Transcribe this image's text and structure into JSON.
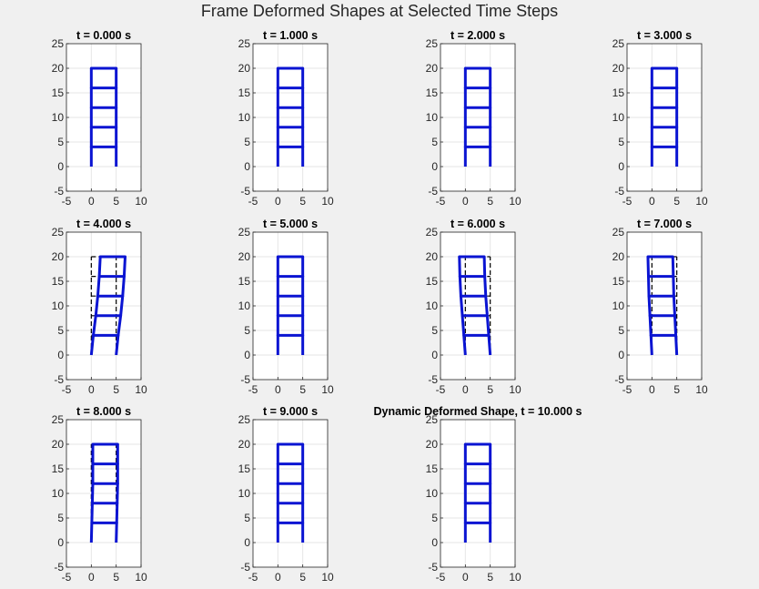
{
  "figure": {
    "title": "Frame Deformed Shapes at Selected Time Steps"
  },
  "chart_data": {
    "type": "line",
    "xlim": [
      -5,
      10
    ],
    "ylim": [
      -5,
      25
    ],
    "xticks": [
      -5,
      0,
      5,
      10
    ],
    "yticks": [
      -5,
      0,
      5,
      10,
      15,
      20,
      25
    ],
    "grid": true,
    "column_x": [
      0,
      5
    ],
    "floor_y": [
      0,
      4,
      8,
      12,
      16,
      20
    ],
    "styles": {
      "deformed": {
        "color": "#0a14d2",
        "dash": "solid"
      },
      "undeformed": {
        "color": "#000000",
        "dash": "dashed"
      }
    },
    "subplots": [
      {
        "title": "t = 0.000 s",
        "floor_disp": [
          0,
          0,
          0,
          0,
          0,
          0
        ]
      },
      {
        "title": "t = 1.000 s",
        "floor_disp": [
          0,
          0,
          0,
          0,
          0,
          0
        ]
      },
      {
        "title": "t = 2.000 s",
        "floor_disp": [
          0,
          0,
          0,
          0,
          0,
          0
        ]
      },
      {
        "title": "t = 3.000 s",
        "floor_disp": [
          0,
          0,
          0,
          0,
          0,
          0
        ]
      },
      {
        "title": "t = 4.000 s",
        "floor_disp": [
          0,
          0.4,
          0.9,
          1.3,
          1.6,
          1.8
        ]
      },
      {
        "title": "t = 5.000 s",
        "floor_disp": [
          0,
          0,
          0,
          0,
          0,
          0
        ]
      },
      {
        "title": "t = 6.000 s",
        "floor_disp": [
          0,
          -0.3,
          -0.6,
          -0.9,
          -1.1,
          -1.2
        ]
      },
      {
        "title": "t = 7.000 s",
        "floor_disp": [
          0,
          -0.2,
          -0.4,
          -0.6,
          -0.7,
          -0.8
        ]
      },
      {
        "title": "t = 8.000 s",
        "floor_disp": [
          0,
          0.1,
          0.2,
          0.3,
          0.3,
          0.3
        ]
      },
      {
        "title": "t = 9.000 s",
        "floor_disp": [
          0,
          0,
          0,
          0,
          0,
          0
        ]
      },
      {
        "title": "Dynamic Deformed Shape, t = 10.000 s",
        "floor_disp": [
          0,
          0,
          0,
          0,
          0,
          0
        ]
      }
    ]
  }
}
